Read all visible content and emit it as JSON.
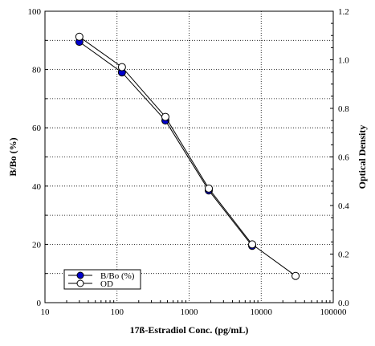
{
  "chart_data": {
    "type": "line",
    "xlabel": "17ß-Estradiol Conc. (pg/mL)",
    "ylabel_left": "B/Bo (%)",
    "ylabel_right": "Optical Density",
    "x_scale": "log",
    "xlim": [
      10,
      100000
    ],
    "ylim_left": [
      0,
      100
    ],
    "ylim_right": [
      0,
      1.2
    ],
    "x_ticks": [
      10,
      100,
      1000,
      10000,
      100000
    ],
    "x_tick_labels": [
      "10",
      "100",
      "1000",
      "10000",
      "100000"
    ],
    "y_left_ticks": [
      0,
      20,
      40,
      60,
      80,
      100
    ],
    "y_left_tick_labels": [
      "0",
      "20",
      "40",
      "60",
      "80",
      "100"
    ],
    "y_right_ticks": [
      0,
      0.2,
      0.4,
      0.6,
      0.8,
      1.0,
      1.2
    ],
    "y_right_tick_labels": [
      "0.0",
      "0.2",
      "0.4",
      "0.6",
      "0.8",
      "1.0",
      "1.2"
    ],
    "grid": true,
    "legend_position": "bottom-left",
    "series": [
      {
        "name": "B/Bo (%)",
        "axis": "left",
        "marker": "filled-circle",
        "color": "#0000cc",
        "x": [
          30,
          117,
          469,
          1875,
          7500
        ],
        "y": [
          89.5,
          79,
          62.5,
          38.5,
          19.5
        ]
      },
      {
        "name": "OD",
        "axis": "right",
        "marker": "open-circle",
        "color": "#ffffff",
        "x": [
          30,
          117,
          469,
          1875,
          7500,
          30000
        ],
        "y": [
          1.095,
          0.97,
          0.765,
          0.47,
          0.24,
          0.11
        ]
      }
    ]
  }
}
